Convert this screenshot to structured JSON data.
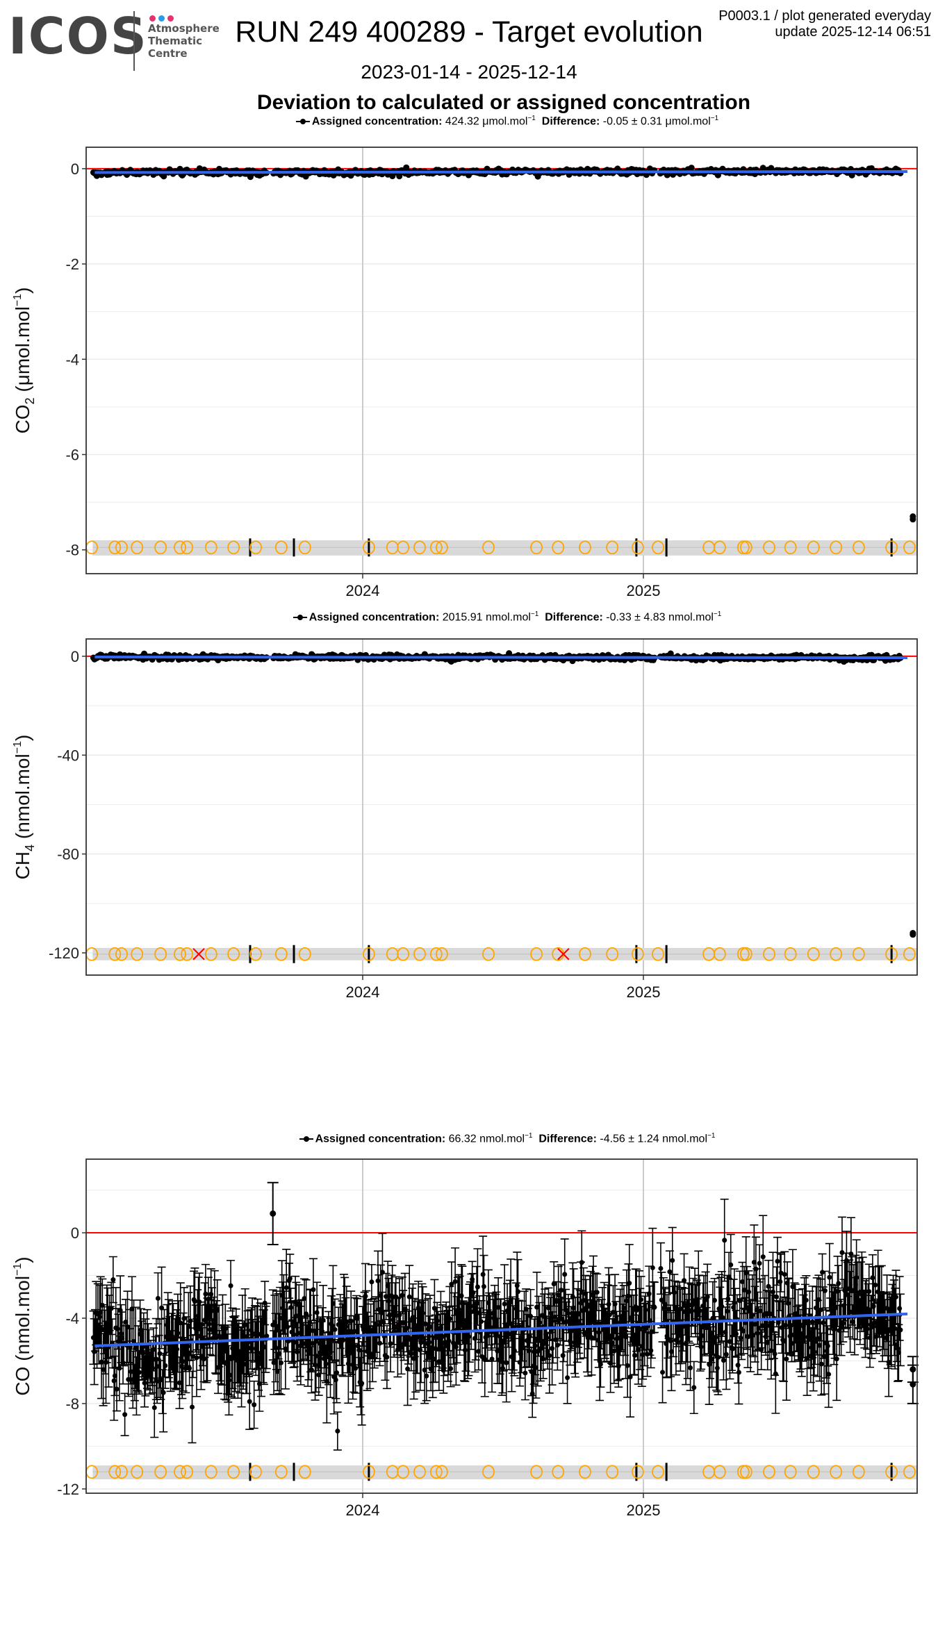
{
  "header": {
    "logo_text": "ICOS",
    "logo_subtitle": [
      "Atmosphere",
      "Thematic",
      "Centre"
    ],
    "logo_dot_colors": [
      "#e6336f",
      "#2b9be8",
      "#e6336f"
    ],
    "title": "RUN 249 400289 - Target evolution",
    "date_range": "2023-01-14 - 2025-12-14",
    "meta_line1": "P0003.1 / plot generated everyday",
    "meta_line2": "update  2025-12-14 06:51",
    "section_title": "Deviation to calculated or assigned concentration"
  },
  "colors": {
    "data": "#000000",
    "trend": "#3366ee",
    "zero_line": "#ff0000",
    "calibration_circle": "#ffa500",
    "flag_cross": "#ff0000",
    "strip": "#d9d9d9",
    "grid": "#ebebeb",
    "year_grid": "#cccccc"
  },
  "chart_data": [
    {
      "type": "scatter",
      "name": "co2-panel",
      "legend": {
        "assigned_label": "Assigned concentration:",
        "assigned_value": "424.32",
        "assigned_unit": "μmol.mol",
        "difference_label": "Difference:",
        "difference_value": "-0.05 ± 0.31",
        "difference_unit": "μmol.mol",
        "unit_exp": "−1"
      },
      "ylabel_species": "CO",
      "ylabel_sub": "2",
      "ylabel_unit": "(μmol.mol",
      "ylabel_exp": "−1",
      "ylim": [
        -8.5,
        0.45
      ],
      "yticks": [
        0,
        -2,
        -4,
        -6,
        -8
      ],
      "ytick_labels": [
        "0",
        "-2",
        "-4",
        "-6",
        "-8"
      ],
      "xlim": [
        "2023-01-14",
        "2025-12-14"
      ],
      "xticks": [
        2024,
        2025
      ],
      "xtick_labels": [
        "2024",
        "2025"
      ],
      "series": {
        "trend_start": -0.08,
        "trend_end": -0.06,
        "noise_sd": 0.03,
        "error_bar": 0.02,
        "gaps": [
          [
            2023.66,
            2023.68
          ],
          [
            2025.04,
            2025.06
          ]
        ],
        "outliers": [
          {
            "x": 2025.96,
            "y": -7.3
          },
          {
            "x": 2025.96,
            "y": -7.36
          }
        ]
      },
      "events_y": -7.95,
      "strip_y": [
        -7.8,
        -8.12
      ]
    },
    {
      "type": "scatter",
      "name": "ch4-panel",
      "legend": {
        "assigned_label": "Assigned concentration:",
        "assigned_value": "2015.91",
        "assigned_unit": "nmol.mol",
        "difference_label": "Difference:",
        "difference_value": "-0.33 ± 4.83",
        "difference_unit": "nmol.mol",
        "unit_exp": "−1"
      },
      "ylabel_species": "CH",
      "ylabel_sub": "4",
      "ylabel_unit": "(nmol.mol",
      "ylabel_exp": "−1",
      "ylim": [
        -129,
        7
      ],
      "yticks": [
        0,
        -40,
        -80,
        -120
      ],
      "ytick_labels": [
        "0",
        "-40",
        "-80",
        "-120"
      ],
      "xlim": [
        "2023-01-14",
        "2025-12-14"
      ],
      "xticks": [
        2024,
        2025
      ],
      "xtick_labels": [
        "2024",
        "2025"
      ],
      "series": {
        "trend_start": -0.3,
        "trend_end": -0.6,
        "noise_sd": 0.5,
        "error_bar": 0.3,
        "gaps": [
          [
            2023.66,
            2023.68
          ],
          [
            2025.04,
            2025.06
          ]
        ],
        "outliers": [
          {
            "x": 2025.96,
            "y": -112
          },
          {
            "x": 2025.96,
            "y": -112.6
          }
        ]
      },
      "events_y": -120.5,
      "strip_y": [
        -118,
        -123
      ]
    },
    {
      "type": "scatter",
      "name": "co-panel",
      "legend": {
        "assigned_label": "Assigned concentration:",
        "assigned_value": "66.32",
        "assigned_unit": "nmol.mol",
        "difference_label": "Difference:",
        "difference_value": "-4.56 ± 1.24",
        "difference_unit": "nmol.mol",
        "unit_exp": "−1"
      },
      "ylabel_species": "CO",
      "ylabel_sub": "",
      "ylabel_unit": "(nmol.mol",
      "ylabel_exp": "−1",
      "ylim": [
        -12.2,
        3.45
      ],
      "yticks": [
        0,
        -4,
        -8,
        -12
      ],
      "ytick_labels": [
        "0",
        "-4",
        "-8",
        "-12"
      ],
      "xlim": [
        "2023-01-14",
        "2025-12-14"
      ],
      "xticks": [
        2024,
        2025
      ],
      "xtick_labels": [
        "2024",
        "2025"
      ],
      "series": {
        "trend_start": -5.3,
        "trend_end": -3.8,
        "noise_sd": 1.1,
        "error_bar": 1.3,
        "gaps": [
          [
            2023.66,
            2023.68
          ],
          [
            2025.04,
            2025.06
          ]
        ],
        "outliers": [
          {
            "x": 2023.68,
            "y": 0.9,
            "err": 1.45
          },
          {
            "x": 2025.96,
            "y": -6.4,
            "err": 0.6
          },
          {
            "x": 2025.96,
            "y": -7.1,
            "err": 0.9
          }
        ]
      },
      "events_y": -11.2,
      "strip_y": [
        -10.9,
        -11.55
      ]
    }
  ],
  "calibration_events": {
    "circles": [
      2023.035,
      2023.117,
      2023.141,
      2023.196,
      2023.28,
      2023.349,
      2023.374,
      2023.46,
      2023.54,
      2023.619,
      2023.71,
      2023.794,
      2024.022,
      2024.106,
      2024.144,
      2024.203,
      2024.262,
      2024.282,
      2024.448,
      2024.619,
      2024.696,
      2024.792,
      2024.889,
      2024.98,
      2025.052,
      2025.233,
      2025.272,
      2025.356,
      2025.366,
      2025.448,
      2025.524,
      2025.606,
      2025.686,
      2025.767,
      2025.884,
      2025.948
    ],
    "crosses_ch4": [
      2023.416,
      2024.715
    ],
    "bars": [
      2023.599,
      2023.755,
      2024.022,
      2024.975,
      2025.082,
      2025.884
    ]
  }
}
